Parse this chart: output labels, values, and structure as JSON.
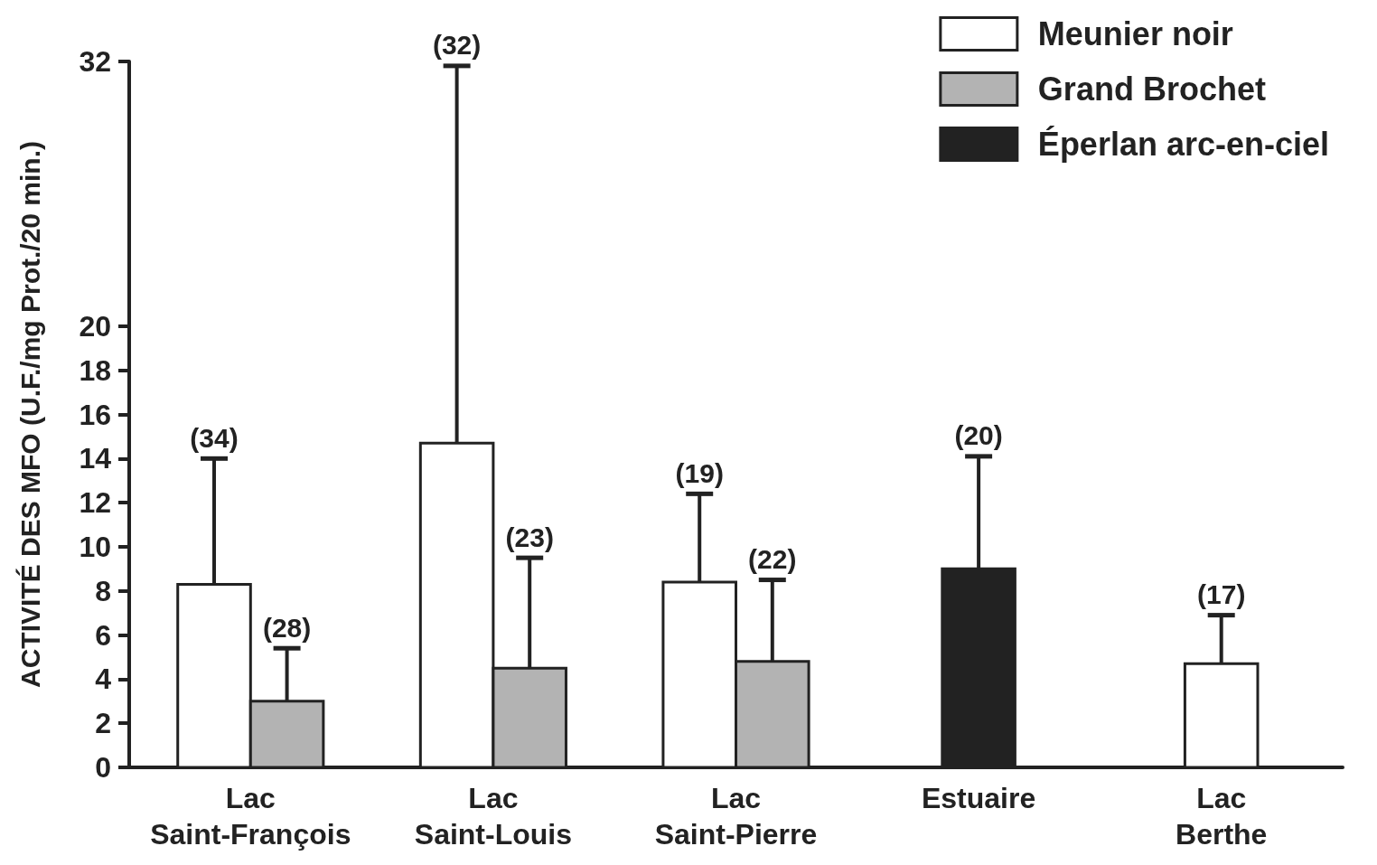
{
  "chart_data": {
    "type": "bar",
    "ylabel": "ACTIVITÉ DES MFO (U.F./mg Prot./20 min.)",
    "categories": [
      "Lac\nSaint-François",
      "Lac\nSaint-Louis",
      "Lac\nSaint-Pierre",
      "Estuaire",
      "Lac\nBerthe"
    ],
    "series": [
      {
        "name": "Meunier noir",
        "color": "#ffffff",
        "values": [
          8.3,
          14.7,
          8.4,
          null,
          4.7
        ],
        "errors": [
          [
            8.3,
            14.0
          ],
          [
            14.7,
            31.8
          ],
          [
            8.4,
            12.4
          ],
          null,
          [
            4.7,
            6.9
          ]
        ]
      },
      {
        "name": "Grand Brochet",
        "color": "#b3b3b3",
        "values": [
          3.0,
          4.5,
          4.8,
          null,
          null
        ],
        "errors": [
          [
            3.0,
            5.4
          ],
          [
            4.5,
            9.5
          ],
          [
            4.8,
            8.5
          ],
          null,
          null
        ]
      },
      {
        "name": "Éperlan arc-en-ciel",
        "color": "#222222",
        "values": [
          null,
          null,
          null,
          9.0,
          null
        ],
        "errors": [
          null,
          null,
          null,
          [
            9.0,
            14.1
          ],
          null
        ]
      }
    ],
    "annotations": [
      "(34)",
      "(28)",
      "(32)",
      "(23)",
      "(19)",
      "(22)",
      "(20)",
      "(17)"
    ],
    "ylim": [
      0,
      32
    ],
    "yticks": [
      0,
      2,
      4,
      6,
      8,
      10,
      12,
      14,
      16,
      18,
      20,
      32
    ],
    "grid": false,
    "legend": "top right"
  }
}
